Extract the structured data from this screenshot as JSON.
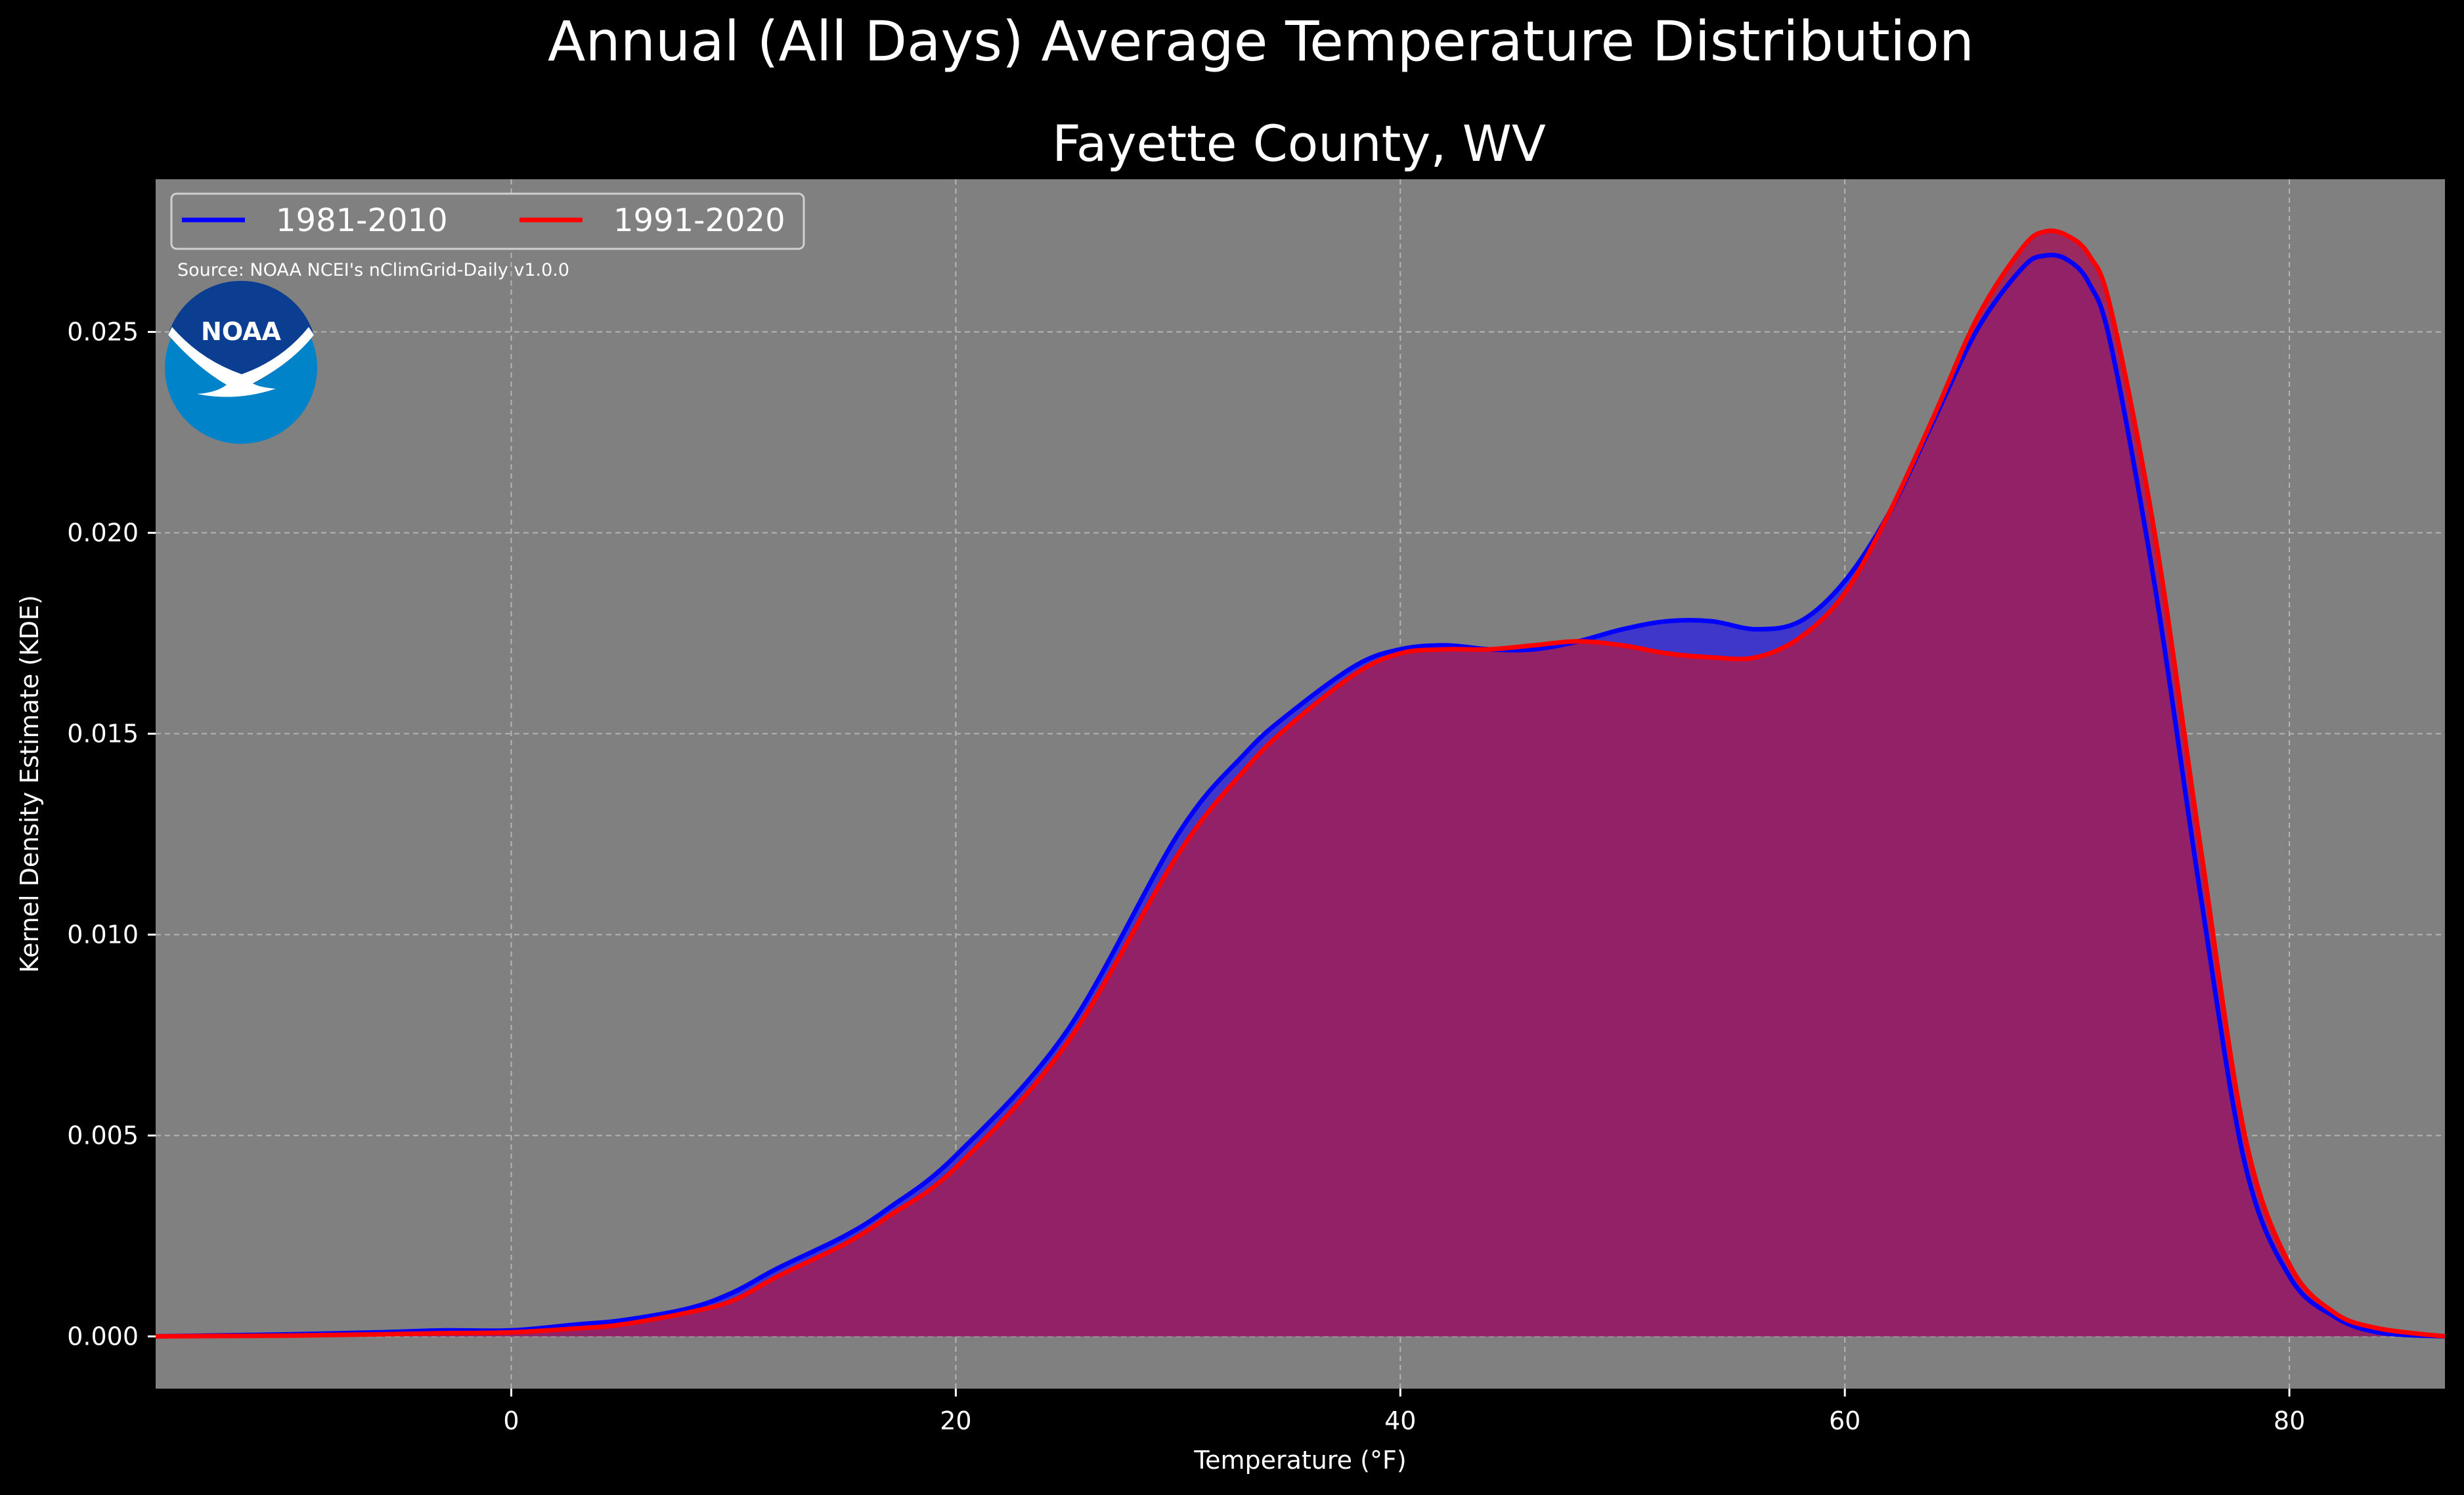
{
  "chart_data": {
    "type": "area",
    "title": "Annual (All Days) Average Temperature Distribution",
    "subtitle": "Fayette County, WV",
    "xlabel": "Temperature (°F)",
    "ylabel": "Kernel Density Estimate (KDE)",
    "xlim": [
      -16,
      87
    ],
    "ylim": [
      -0.0013,
      0.0288
    ],
    "xticks": [
      0,
      20,
      40,
      60,
      80
    ],
    "xtick_labels": [
      "0",
      "20",
      "40",
      "60",
      "80"
    ],
    "yticks": [
      0.0,
      0.005,
      0.01,
      0.015,
      0.02,
      0.025
    ],
    "ytick_labels": [
      "0.000",
      "0.005",
      "0.010",
      "0.015",
      "0.020",
      "0.025"
    ],
    "grid": true,
    "legend_position": "top-left",
    "source": "Source: NOAA NCEI's nClimGrid-Daily v1.0.0",
    "logo_text": "NOAA",
    "colors": {
      "figure_bg": "#000000",
      "axes_bg": "#808080",
      "grid": "#b5b5b5",
      "logo_outer": "#0083c9",
      "logo_inner": "#0b3d91"
    },
    "series": [
      {
        "name": "1981-2010",
        "color": "#0000ff",
        "fill": "#3a33cc",
        "x": [
          -16,
          -10,
          -6,
          -3,
          0,
          3,
          5,
          8,
          10,
          12,
          15,
          17,
          20,
          25,
          30,
          33,
          35,
          38,
          40,
          42,
          44,
          46,
          48,
          50,
          52,
          54,
          56,
          58,
          60,
          62,
          64,
          66,
          68,
          69,
          70,
          71,
          72,
          74,
          76,
          78,
          80,
          82,
          84,
          87
        ],
        "y": [
          0.0,
          5e-05,
          0.0001,
          0.00015,
          0.00015,
          0.0003,
          0.0004,
          0.0007,
          0.0011,
          0.0017,
          0.0025,
          0.0032,
          0.0045,
          0.0076,
          0.0125,
          0.0145,
          0.0155,
          0.0167,
          0.0171,
          0.0172,
          0.0171,
          0.0171,
          0.0173,
          0.0176,
          0.0178,
          0.0178,
          0.0176,
          0.0178,
          0.0188,
          0.0205,
          0.0228,
          0.0251,
          0.0266,
          0.0269,
          0.0268,
          0.0262,
          0.0246,
          0.0185,
          0.011,
          0.0043,
          0.0015,
          0.0005,
          0.0001,
          0.0
        ]
      },
      {
        "name": "1991-2020",
        "color": "#ff0000",
        "fill": "#9c1f5c",
        "x": [
          -16,
          -10,
          -6,
          -3,
          0,
          3,
          5,
          8,
          10,
          12,
          15,
          17,
          20,
          25,
          30,
          33,
          35,
          38,
          40,
          42,
          44,
          46,
          48,
          50,
          52,
          54,
          56,
          58,
          60,
          62,
          64,
          66,
          68,
          69,
          70,
          71,
          72,
          74,
          76,
          78,
          80,
          82,
          84,
          87
        ],
        "y": [
          0.0,
          2e-05,
          5e-05,
          8e-05,
          0.0001,
          0.0002,
          0.0003,
          0.0006,
          0.0009,
          0.0015,
          0.0023,
          0.003,
          0.0042,
          0.0073,
          0.012,
          0.0141,
          0.0152,
          0.0165,
          0.017,
          0.0171,
          0.0171,
          0.0172,
          0.0173,
          0.0172,
          0.017,
          0.0169,
          0.0169,
          0.0174,
          0.0185,
          0.0205,
          0.0229,
          0.0254,
          0.0271,
          0.0275,
          0.0274,
          0.0269,
          0.0255,
          0.0198,
          0.0122,
          0.005,
          0.0018,
          0.0006,
          0.0002,
          0.0
        ]
      }
    ]
  }
}
